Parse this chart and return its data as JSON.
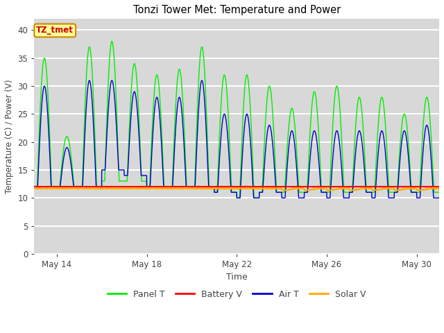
{
  "title": "Tonzi Tower Met: Temperature and Power",
  "xlabel": "Time",
  "ylabel": "Temperature (C) / Power (V)",
  "ylim": [
    0,
    42
  ],
  "yticks": [
    0,
    5,
    10,
    15,
    20,
    25,
    30,
    35,
    40
  ],
  "plot_bg_color": "#d8d8d8",
  "grid_color": "#ffffff",
  "annotation_text": "TZ_tmet",
  "annotation_box_color": "#ffff99",
  "annotation_text_color": "#cc0000",
  "annotation_border_color": "#cc8800",
  "legend_labels": [
    "Panel T",
    "Battery V",
    "Air T",
    "Solar V"
  ],
  "line_colors": [
    "#00ee00",
    "#ff0000",
    "#0000cc",
    "#ffaa00"
  ],
  "n_days": 18,
  "xtick_days": [
    1,
    5,
    9,
    13,
    17
  ],
  "xtick_labels": [
    "May 14",
    "May 18",
    "May 22",
    "May 26",
    "May 30"
  ],
  "panel_peaks": [
    35,
    21,
    37,
    38,
    34,
    32,
    33,
    37,
    32,
    32,
    30,
    26,
    29,
    30,
    28,
    28,
    25,
    28
  ],
  "panel_nights": [
    12,
    12,
    12,
    13,
    13,
    12,
    12,
    12,
    11,
    10,
    11,
    11,
    11,
    11,
    11,
    11,
    11,
    11
  ],
  "air_peaks": [
    30,
    19,
    31,
    31,
    29,
    28,
    28,
    31,
    25,
    25,
    23,
    22,
    22,
    22,
    22,
    22,
    22,
    23
  ],
  "air_nights": [
    12,
    12,
    12,
    15,
    14,
    12,
    12,
    12,
    11,
    10,
    11,
    10,
    11,
    10,
    11,
    10,
    11,
    10
  ],
  "battery_base": 12.0,
  "solar_base": 11.7
}
